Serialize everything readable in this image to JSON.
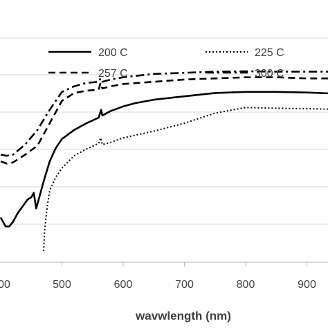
{
  "chart_data": {
    "type": "line",
    "title": "",
    "xlabel": "wavwlength (nm)",
    "ylabel": "",
    "xlim": [
      400,
      950
    ],
    "ylim": [
      0,
      100
    ],
    "x_ticks": [
      "500",
      "600",
      "700",
      "800",
      "900"
    ],
    "x_tick_values": [
      500,
      600,
      700,
      800,
      900
    ],
    "x_tick_partial_label": "00",
    "grid": "horizontal",
    "legend_position": "top",
    "series": [
      {
        "name": "200 C",
        "style": "solid",
        "x": [
          400,
          408,
          414,
          420,
          428,
          436,
          444,
          450,
          454,
          458,
          462,
          470,
          480,
          490,
          500,
          520,
          540,
          560,
          564,
          566,
          580,
          600,
          620,
          650,
          700,
          750,
          800,
          850,
          900,
          950
        ],
        "y": [
          20,
          16,
          16,
          18,
          22,
          25,
          28,
          29,
          31,
          24,
          28,
          36,
          45,
          51,
          55,
          59,
          62,
          64.5,
          68,
          65.5,
          67.5,
          69.5,
          71,
          72.5,
          74,
          75.5,
          76,
          76,
          75.7,
          75.2
        ]
      },
      {
        "name": "225 C",
        "style": "dotted",
        "x": [
          470,
          472,
          476,
          480,
          490,
          500,
          520,
          540,
          560,
          563,
          566,
          580,
          600,
          650,
          700,
          750,
          800,
          850,
          900,
          950
        ],
        "y": [
          5,
          15,
          25,
          32,
          38,
          42,
          47.5,
          50.5,
          53,
          55.5,
          52.5,
          53.5,
          55.5,
          58.5,
          62,
          66.5,
          69,
          68.7,
          68.5,
          68.2
        ]
      },
      {
        "name": "257 C",
        "style": "dashed",
        "x": [
          400,
          410,
          420,
          440,
          460,
          480,
          500,
          520,
          540,
          560,
          563,
          566,
          580,
          600,
          650,
          700,
          750,
          800,
          850,
          900,
          950
        ],
        "y": [
          45,
          44,
          44.5,
          48,
          52,
          62,
          72,
          75.5,
          76.5,
          77,
          80,
          77.5,
          78.5,
          79.5,
          80.5,
          81.5,
          82,
          82.5,
          82.5,
          82,
          82
        ]
      },
      {
        "name": "300 C",
        "style": "dashdot",
        "x": [
          400,
          410,
          420,
          440,
          460,
          480,
          500,
          520,
          540,
          560,
          563,
          566,
          580,
          600,
          650,
          700,
          750,
          800,
          850,
          900,
          950
        ],
        "y": [
          48,
          47.5,
          48,
          52.5,
          59,
          68,
          76,
          78.5,
          80,
          80.5,
          82,
          80.5,
          81.5,
          82.5,
          84,
          84.5,
          85,
          85.2,
          85,
          85,
          85
        ]
      }
    ]
  }
}
